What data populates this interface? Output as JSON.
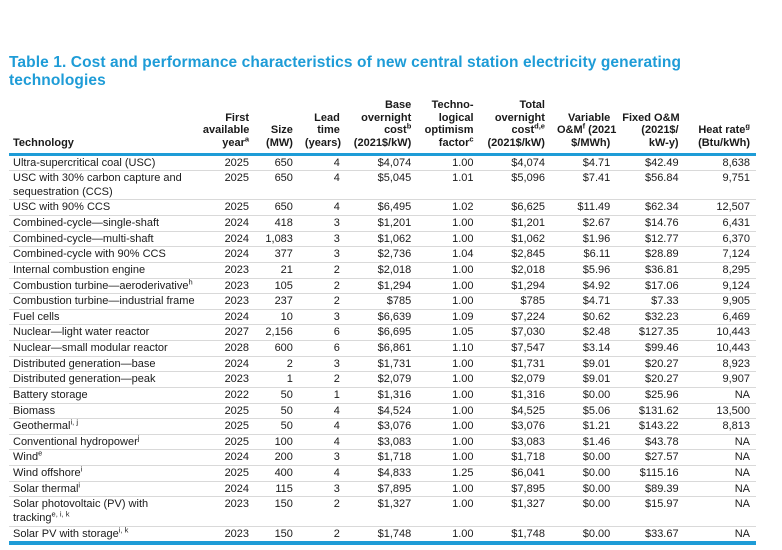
{
  "page": {
    "title": "Table 1. Cost and performance characteristics of new central station electricity generating technologies"
  },
  "colors": {
    "accent_blue": "#1e9cd7",
    "row_divider": "#d9d9d9",
    "text": "#1a1a1a"
  },
  "table": {
    "columns": [
      {
        "id": "technology",
        "lines": [
          "Technology"
        ]
      },
      {
        "id": "first-available-year",
        "lines": [
          "First",
          "available",
          "year^a^"
        ]
      },
      {
        "id": "size",
        "lines": [
          "Size",
          "(MW)"
        ]
      },
      {
        "id": "lead-time",
        "lines": [
          "Lead",
          "time",
          "(years)"
        ]
      },
      {
        "id": "base-overnight-cost",
        "lines": [
          "Base",
          "overnight",
          "cost^b^",
          "(2021$/kW)"
        ]
      },
      {
        "id": "technological-optimism-factor",
        "lines": [
          "Techno-",
          "logical",
          "optimism",
          "factor^c^"
        ]
      },
      {
        "id": "total-overnight-cost",
        "lines": [
          "Total",
          "overnight",
          "cost^d,e^",
          "(2021$/kW)"
        ]
      },
      {
        "id": "variable-om",
        "lines": [
          "Variable",
          "O&M^f^ (2021",
          "$/MWh)"
        ]
      },
      {
        "id": "fixed-om",
        "lines": [
          "Fixed O&M",
          "(2021$/",
          "kW-y)"
        ]
      },
      {
        "id": "heat-rate",
        "lines": [
          "Heat rate^g^",
          "(Btu/kWh)"
        ]
      }
    ],
    "rows": [
      [
        "Ultra-supercritical coal (USC)",
        "2025",
        "650",
        "4",
        "$4,074",
        "1.00",
        "$4,074",
        "$4.71",
        "$42.49",
        "8,638"
      ],
      [
        "USC with 30% carbon capture and sequestration (CCS)",
        "2025",
        "650",
        "4",
        "$5,045",
        "1.01",
        "$5,096",
        "$7.41",
        "$56.84",
        "9,751"
      ],
      [
        "USC with 90% CCS",
        "2025",
        "650",
        "4",
        "$6,495",
        "1.02",
        "$6,625",
        "$11.49",
        "$62.34",
        "12,507"
      ],
      [
        "Combined-cycle—single-shaft",
        "2024",
        "418",
        "3",
        "$1,201",
        "1.00",
        "$1,201",
        "$2.67",
        "$14.76",
        "6,431"
      ],
      [
        "Combined-cycle—multi-shaft",
        "2024",
        "1,083",
        "3",
        "$1,062",
        "1.00",
        "$1,062",
        "$1.96",
        "$12.77",
        "6,370"
      ],
      [
        "Combined-cycle with 90% CCS",
        "2024",
        "377",
        "3",
        "$2,736",
        "1.04",
        "$2,845",
        "$6.11",
        "$28.89",
        "7,124"
      ],
      [
        "Internal combustion engine",
        "2023",
        "21",
        "2",
        "$2,018",
        "1.00",
        "$2,018",
        "$5.96",
        "$36.81",
        "8,295"
      ],
      [
        "Combustion turbine—aeroderivative^h^",
        "2023",
        "105",
        "2",
        "$1,294",
        "1.00",
        "$1,294",
        "$4.92",
        "$17.06",
        "9,124"
      ],
      [
        "Combustion turbine—industrial frame",
        "2023",
        "237",
        "2",
        "$785",
        "1.00",
        "$785",
        "$4.71",
        "$7.33",
        "9,905"
      ],
      [
        "Fuel cells",
        "2024",
        "10",
        "3",
        "$6,639",
        "1.09",
        "$7,224",
        "$0.62",
        "$32.23",
        "6,469"
      ],
      [
        "Nuclear—light water reactor",
        "2027",
        "2,156",
        "6",
        "$6,695",
        "1.05",
        "$7,030",
        "$2.48",
        "$127.35",
        "10,443"
      ],
      [
        "Nuclear—small modular reactor",
        "2028",
        "600",
        "6",
        "$6,861",
        "1.10",
        "$7,547",
        "$3.14",
        "$99.46",
        "10,443"
      ],
      [
        "Distributed generation—base",
        "2024",
        "2",
        "3",
        "$1,731",
        "1.00",
        "$1,731",
        "$9.01",
        "$20.27",
        "8,923"
      ],
      [
        "Distributed generation—peak",
        "2023",
        "1",
        "2",
        "$2,079",
        "1.00",
        "$2,079",
        "$9.01",
        "$20.27",
        "9,907"
      ],
      [
        "Battery storage",
        "2022",
        "50",
        "1",
        "$1,316",
        "1.00",
        "$1,316",
        "$0.00",
        "$25.96",
        "NA"
      ],
      [
        "Biomass",
        "2025",
        "50",
        "4",
        "$4,524",
        "1.00",
        "$4,525",
        "$5.06",
        "$131.62",
        "13,500"
      ],
      [
        "Geothermal^i, j^",
        "2025",
        "50",
        "4",
        "$3,076",
        "1.00",
        "$3,076",
        "$1.21",
        "$143.22",
        "8,813"
      ],
      [
        "Conventional hydropower^j^",
        "2025",
        "100",
        "4",
        "$3,083",
        "1.00",
        "$3,083",
        "$1.46",
        "$43.78",
        "NA"
      ],
      [
        "Wind^e^",
        "2024",
        "200",
        "3",
        "$1,718",
        "1.00",
        "$1,718",
        "$0.00",
        "$27.57",
        "NA"
      ],
      [
        "Wind offshore^i^",
        "2025",
        "400",
        "4",
        "$4,833",
        "1.25",
        "$6,041",
        "$0.00",
        "$115.16",
        "NA"
      ],
      [
        "Solar thermal^i^",
        "2024",
        "115",
        "3",
        "$7,895",
        "1.00",
        "$7,895",
        "$0.00",
        "$89.39",
        "NA"
      ],
      [
        "Solar photovoltaic (PV) with tracking^e, i, k^",
        "2023",
        "150",
        "2",
        "$1,327",
        "1.00",
        "$1,327",
        "$0.00",
        "$15.97",
        "NA"
      ],
      [
        "Solar PV with storage^i, k^",
        "2023",
        "150",
        "2",
        "$1,748",
        "1.00",
        "$1,748",
        "$0.00",
        "$33.67",
        "NA"
      ]
    ]
  }
}
